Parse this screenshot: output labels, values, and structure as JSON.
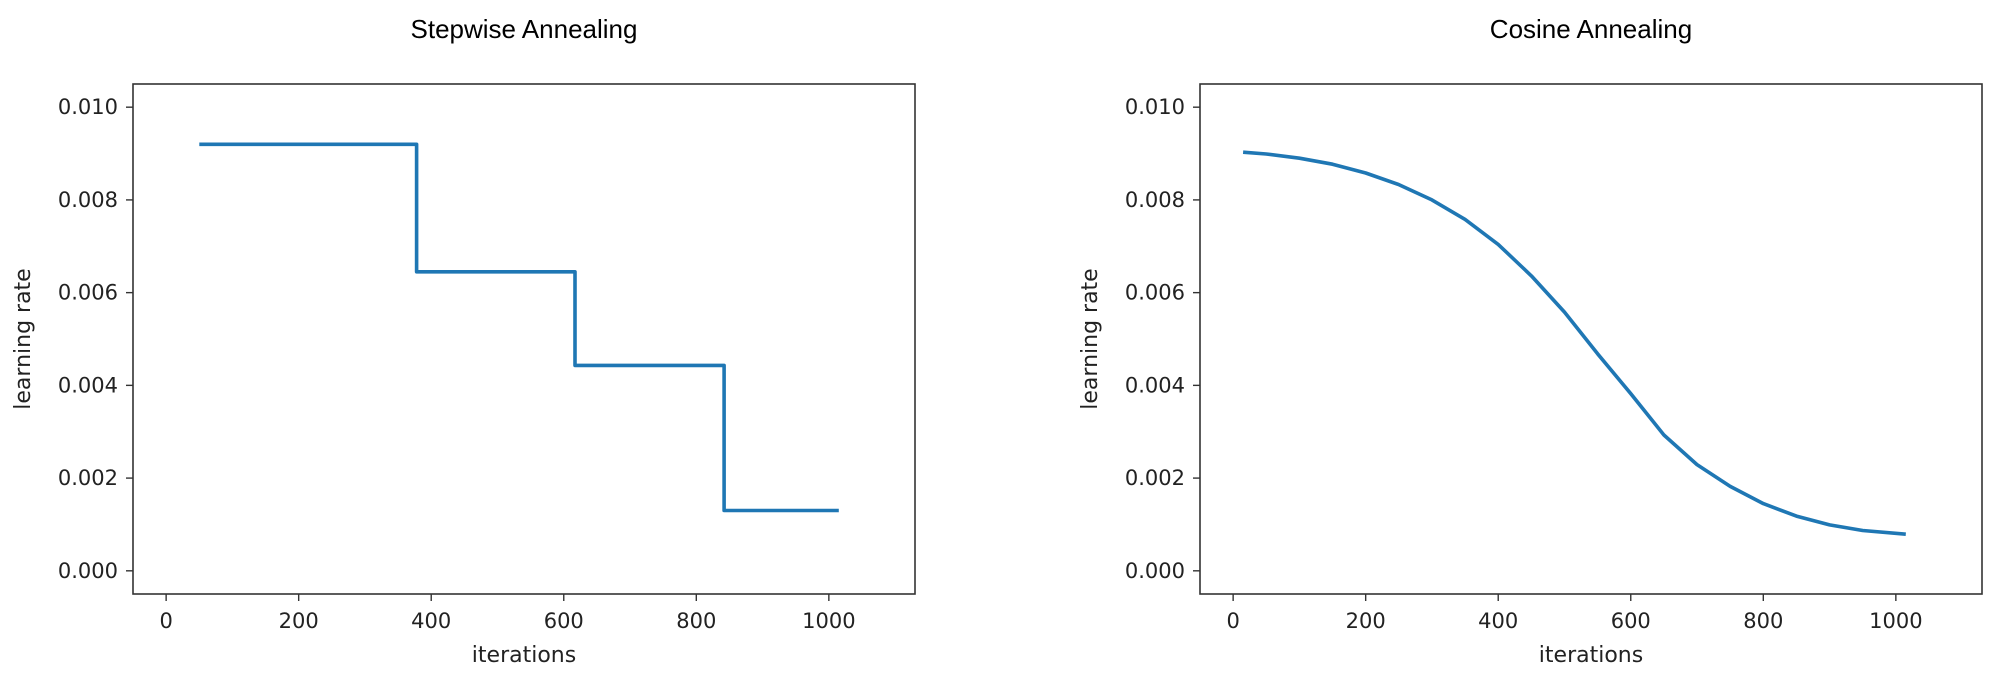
{
  "chart_data": [
    {
      "type": "line",
      "title": "Stepwise Annealing",
      "xlabel": "iterations",
      "ylabel": "learning rate",
      "xlim": [
        -50,
        1130
      ],
      "ylim": [
        -0.0005,
        0.0105
      ],
      "xticks": [
        0,
        200,
        400,
        600,
        800,
        1000
      ],
      "xtick_labels": [
        "0",
        "200",
        "400",
        "600",
        "800",
        "1000"
      ],
      "yticks": [
        0.0,
        0.002,
        0.004,
        0.006,
        0.008,
        0.01
      ],
      "ytick_labels": [
        "0.000",
        "0.002",
        "0.004",
        "0.006",
        "0.008",
        "0.010"
      ],
      "grid": false,
      "color": "#1f77b4",
      "series": [
        {
          "x": [
            50,
            378,
            378,
            617,
            617,
            842,
            842,
            1015
          ],
          "y": [
            0.0092,
            0.0092,
            0.00645,
            0.00645,
            0.00443,
            0.00443,
            0.0013,
            0.0013
          ]
        }
      ]
    },
    {
      "type": "line",
      "title": "Cosine Annealing",
      "xlabel": "iterations",
      "ylabel": "learning rate",
      "xlim": [
        -50,
        1130
      ],
      "ylim": [
        -0.0005,
        0.0105
      ],
      "xticks": [
        0,
        200,
        400,
        600,
        800,
        1000
      ],
      "xtick_labels": [
        "0",
        "200",
        "400",
        "600",
        "800",
        "1000"
      ],
      "yticks": [
        0.0,
        0.002,
        0.004,
        0.006,
        0.008,
        0.01
      ],
      "ytick_labels": [
        "0.000",
        "0.002",
        "0.004",
        "0.006",
        "0.008",
        "0.010"
      ],
      "grid": false,
      "color": "#1f77b4",
      "series": [
        {
          "x": [
            15,
            50,
            100,
            150,
            200,
            250,
            300,
            350,
            400,
            450,
            500,
            550,
            600,
            650,
            700,
            750,
            800,
            850,
            900,
            950,
            1015
          ],
          "y": [
            0.00903,
            0.00899,
            0.0089,
            0.00877,
            0.00858,
            0.00833,
            0.008,
            0.00758,
            0.00704,
            0.00636,
            0.00558,
            0.00468,
            0.00382,
            0.00293,
            0.00229,
            0.00182,
            0.00145,
            0.00118,
            0.00099,
            0.00087,
            0.00079
          ]
        }
      ]
    }
  ]
}
